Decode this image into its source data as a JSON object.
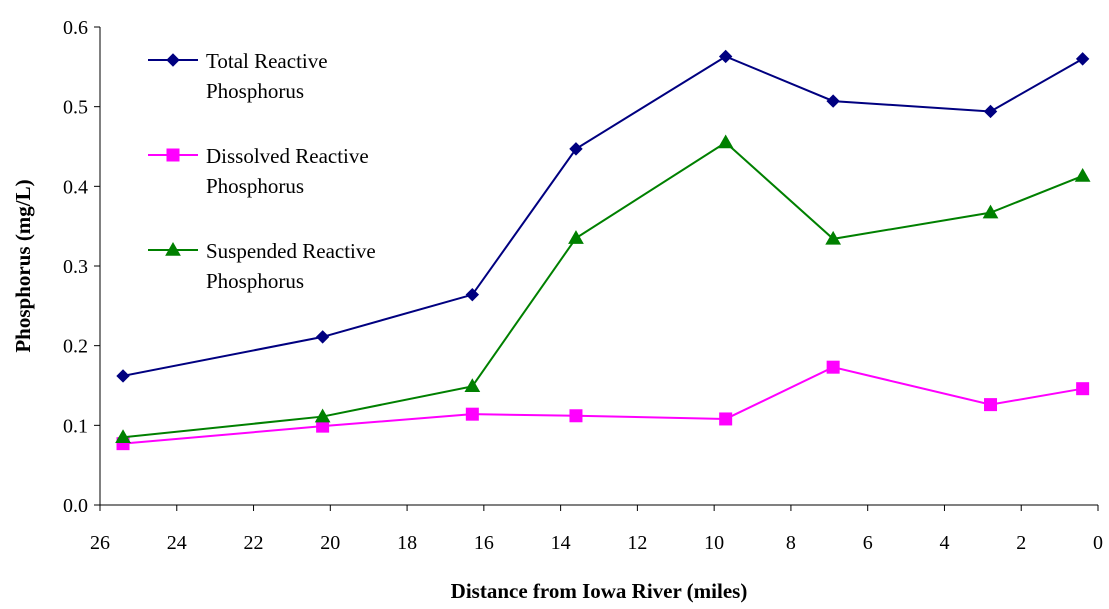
{
  "chart_data": {
    "type": "line",
    "title": "",
    "xlabel": "Distance from Iowa River (miles)",
    "ylabel": "Phosphorus (mg/L)",
    "xlim": [
      26,
      0
    ],
    "ylim": [
      0,
      0.6
    ],
    "x_reversed": true,
    "xticks": [
      "26",
      "24",
      "22",
      "20",
      "18",
      "16",
      "14",
      "12",
      "10",
      "8",
      "6",
      "4",
      "2",
      "0"
    ],
    "yticks": [
      "0.0",
      "0.1",
      "0.2",
      "0.3",
      "0.4",
      "0.5",
      "0.6"
    ],
    "grid": false,
    "legend": "top-left",
    "x": [
      25.4,
      20.2,
      16.3,
      13.6,
      9.7,
      6.9,
      2.8,
      0.4
    ],
    "series": [
      {
        "name": "Total Reactive Phosphorus",
        "legend_lines": [
          "Total Reactive",
          "Phosphorus"
        ],
        "color": "#000080",
        "marker": "diamond",
        "values": [
          0.162,
          0.211,
          0.264,
          0.447,
          0.563,
          0.507,
          0.494,
          0.56
        ]
      },
      {
        "name": "Dissolved Reactive Phosphorus",
        "legend_lines": [
          "Dissolved Reactive",
          "Phosphorus"
        ],
        "color": "#ff00ff",
        "marker": "square",
        "values": [
          0.077,
          0.099,
          0.114,
          0.112,
          0.108,
          0.173,
          0.126,
          0.146
        ]
      },
      {
        "name": "Suspended Reactive Phosphorus",
        "legend_lines": [
          "Suspended Reactive",
          "Phosphorus"
        ],
        "color": "#008000",
        "marker": "triangle",
        "values": [
          0.085,
          0.111,
          0.149,
          0.335,
          0.455,
          0.334,
          0.367,
          0.413
        ]
      }
    ]
  }
}
